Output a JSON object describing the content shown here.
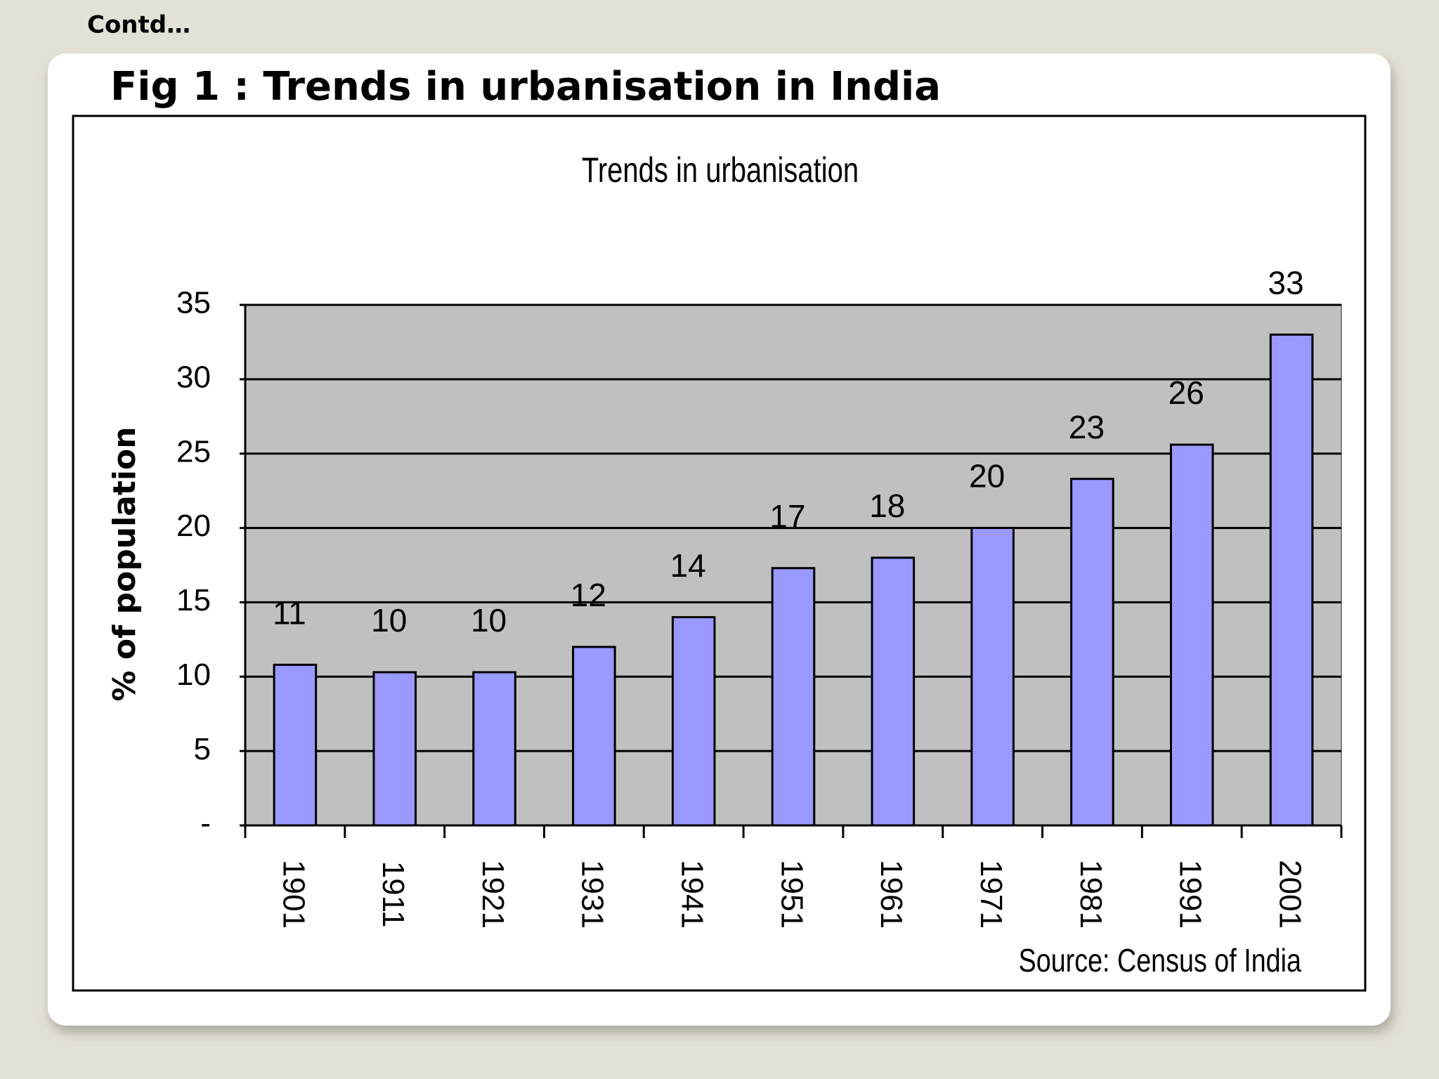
{
  "slide": {
    "note": "Contd…",
    "figure_title": "Fig 1 : Trends in urbanisation in India"
  },
  "chart_data": {
    "type": "bar",
    "title": "Trends in urbanisation",
    "y_label": "% of population",
    "source": "Source: Census of India",
    "categories": [
      "1901",
      "1911",
      "1921",
      "1931",
      "1941",
      "1951",
      "1961",
      "1971",
      "1981",
      "1991",
      "2001"
    ],
    "values": [
      10.8,
      10.3,
      10.3,
      12.0,
      14.0,
      17.3,
      18.0,
      20.0,
      23.3,
      25.6,
      33.0
    ],
    "value_labels": [
      "11",
      "10",
      "10",
      "12",
      "14",
      "17",
      "18",
      "20",
      "23",
      "26",
      "33"
    ],
    "color": "#9999ff",
    "ylim": [
      0,
      35
    ],
    "yticks": [
      {
        "value": 0,
        "label": "-"
      },
      5,
      10,
      15,
      20,
      25,
      30,
      35
    ],
    "grid": true
  }
}
